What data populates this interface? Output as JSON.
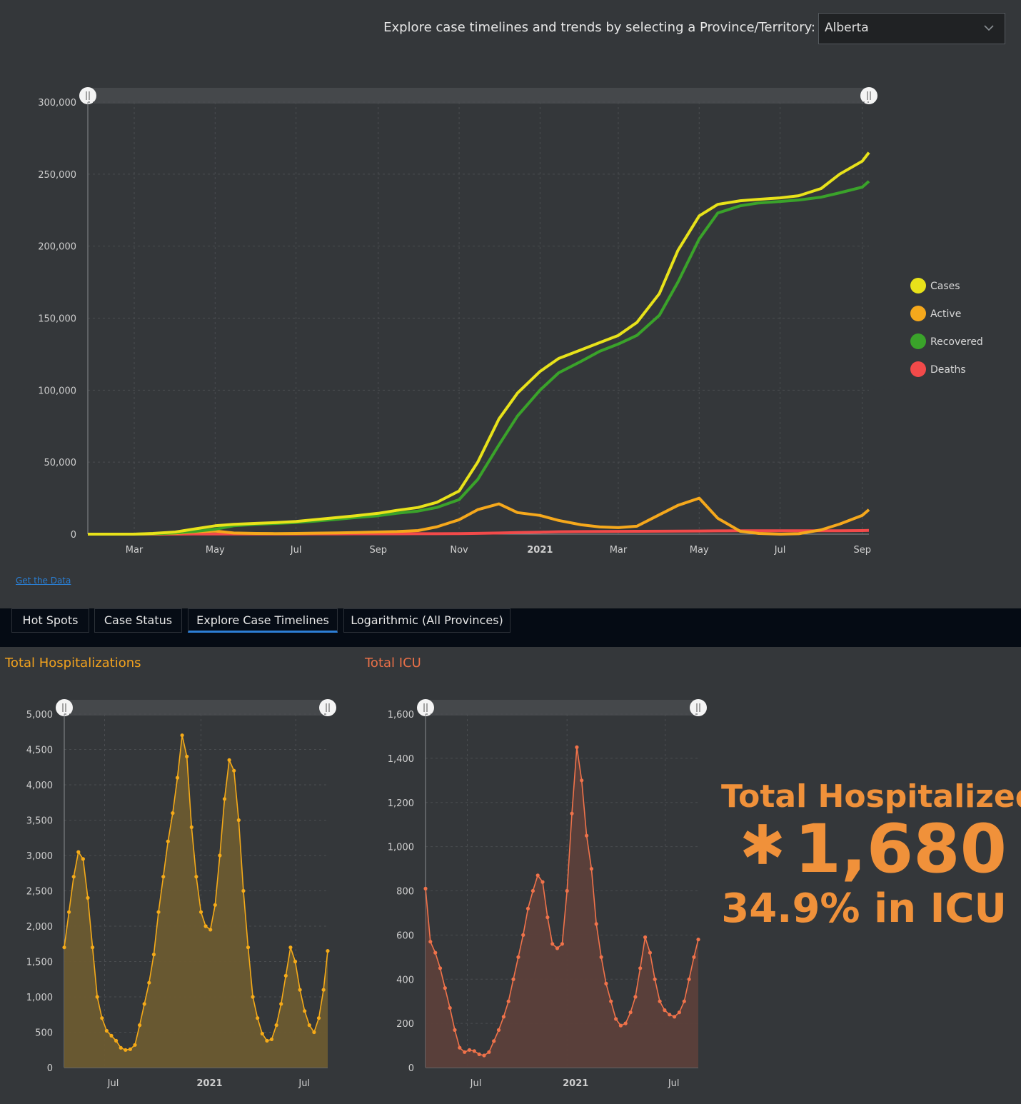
{
  "selector": {
    "label": "Explore case timelines and trends by selecting a Province/Territory:",
    "value": "Alberta",
    "caret_icon": "chevron-down-icon"
  },
  "get_data_link": "Get the Data",
  "tabs": [
    {
      "label": "Hot Spots",
      "active": false
    },
    {
      "label": "Case Status",
      "active": false
    },
    {
      "label": "Explore Case Timelines",
      "active": true
    },
    {
      "label": "Logarithmic (All Provinces)",
      "active": false
    }
  ],
  "kpi": {
    "title": "Total Hospitalized",
    "icon": "asterisk-icon",
    "value": "1,680",
    "sub": "34.9% in ICU",
    "color": "#f0913a"
  },
  "chart_data": [
    {
      "type": "line",
      "title": "",
      "x_tick_labels": [
        "Mar",
        "May",
        "Jul",
        "Sep",
        "Nov",
        "2021",
        "Mar",
        "May",
        "Jul",
        "Sep"
      ],
      "x_tick_bold": [
        false,
        false,
        false,
        false,
        false,
        true,
        false,
        false,
        false,
        false
      ],
      "x": [
        "2020-01-26",
        "2020-02-15",
        "2020-03-01",
        "2020-03-15",
        "2020-04-01",
        "2020-04-15",
        "2020-05-01",
        "2020-05-15",
        "2020-06-01",
        "2020-06-15",
        "2020-07-01",
        "2020-07-15",
        "2020-08-01",
        "2020-08-15",
        "2020-09-01",
        "2020-09-15",
        "2020-10-01",
        "2020-10-15",
        "2020-11-01",
        "2020-11-15",
        "2020-12-01",
        "2020-12-15",
        "2021-01-01",
        "2021-01-15",
        "2021-02-01",
        "2021-02-15",
        "2021-03-01",
        "2021-03-15",
        "2021-04-01",
        "2021-04-15",
        "2021-05-01",
        "2021-05-15",
        "2021-06-01",
        "2021-06-15",
        "2021-07-01",
        "2021-07-15",
        "2021-08-01",
        "2021-08-15",
        "2021-09-01",
        "2021-09-06"
      ],
      "series": [
        {
          "name": "Cases",
          "color": "#e8e21a",
          "values": [
            0,
            0,
            0,
            500,
            1500,
            3500,
            5800,
            6800,
            7500,
            8000,
            8800,
            10000,
            11500,
            12800,
            14500,
            16500,
            18500,
            22000,
            30000,
            50000,
            80000,
            98000,
            113000,
            122000,
            128000,
            133000,
            138000,
            147000,
            167000,
            197000,
            221000,
            229000,
            231500,
            232500,
            233500,
            235000,
            240000,
            250000,
            259000,
            265000
          ]
        },
        {
          "name": "Active",
          "color": "#f5a81c",
          "values": [
            0,
            0,
            0,
            200,
            600,
            1500,
            2200,
            800,
            500,
            400,
            500,
            700,
            900,
            1100,
            1500,
            1800,
            2500,
            5000,
            10000,
            17000,
            21000,
            15000,
            13000,
            9500,
            6500,
            5000,
            4500,
            5500,
            13500,
            20000,
            25000,
            11000,
            2000,
            500,
            0,
            300,
            3000,
            7000,
            13000,
            17000
          ]
        },
        {
          "name": "Recovered",
          "color": "#3aa32a",
          "values": [
            0,
            0,
            0,
            300,
            900,
            1900,
            3400,
            5800,
            6800,
            7400,
            8100,
            9000,
            10300,
            11500,
            12800,
            14500,
            16000,
            18500,
            24000,
            38000,
            62000,
            82000,
            100000,
            112000,
            120000,
            127000,
            132000,
            138000,
            152000,
            175000,
            205000,
            223000,
            228000,
            230000,
            231000,
            232000,
            234000,
            237000,
            241000,
            245000
          ]
        },
        {
          "name": "Deaths",
          "color": "#f24a4a",
          "values": [
            0,
            0,
            0,
            10,
            40,
            80,
            110,
            140,
            150,
            160,
            170,
            200,
            220,
            240,
            250,
            270,
            290,
            320,
            400,
            550,
            800,
            1100,
            1400,
            1700,
            1800,
            1900,
            1950,
            2000,
            2050,
            2100,
            2200,
            2300,
            2350,
            2320,
            2330,
            2340,
            2350,
            2400,
            2500,
            2600
          ]
        }
      ],
      "y_tick_labels": [
        "0",
        "50,000",
        "100,000",
        "150,000",
        "200,000",
        "250,000",
        "300,000"
      ],
      "ylim": [
        0,
        300000
      ],
      "grid": true,
      "legend": "right",
      "legend_entries": [
        "Cases",
        "Active",
        "Recovered",
        "Deaths"
      ]
    },
    {
      "type": "area",
      "title": "Total Hospitalizations",
      "title_color": "#f2a21e",
      "color": "#f5aa18",
      "fill": "#6b5a30",
      "x_tick_labels": [
        "Jul",
        "2021",
        "Jul"
      ],
      "x_tick_bold": [
        false,
        true,
        false
      ],
      "x": [
        "2020-04-15",
        "2020-04-24",
        "2020-05-03",
        "2020-05-12",
        "2020-05-21",
        "2020-05-30",
        "2020-06-08",
        "2020-06-17",
        "2020-06-26",
        "2020-07-05",
        "2020-07-14",
        "2020-07-23",
        "2020-08-01",
        "2020-08-10",
        "2020-08-19",
        "2020-08-28",
        "2020-09-06",
        "2020-09-15",
        "2020-09-24",
        "2020-10-03",
        "2020-10-12",
        "2020-10-21",
        "2020-10-30",
        "2020-11-08",
        "2020-11-17",
        "2020-11-26",
        "2020-12-05",
        "2020-12-14",
        "2020-12-23",
        "2021-01-01",
        "2021-01-10",
        "2021-01-19",
        "2021-01-28",
        "2021-02-06",
        "2021-02-15",
        "2021-02-24",
        "2021-03-05",
        "2021-03-14",
        "2021-03-23",
        "2021-04-01",
        "2021-04-10",
        "2021-04-19",
        "2021-04-28",
        "2021-05-07",
        "2021-05-16",
        "2021-05-25",
        "2021-06-03",
        "2021-06-12",
        "2021-06-21",
        "2021-06-30",
        "2021-07-09",
        "2021-07-18",
        "2021-07-27",
        "2021-08-05",
        "2021-08-14",
        "2021-08-23",
        "2021-08-31"
      ],
      "values": [
        1700,
        2200,
        2700,
        3050,
        2950,
        2400,
        1700,
        1000,
        700,
        520,
        450,
        380,
        280,
        250,
        260,
        320,
        600,
        900,
        1200,
        1600,
        2200,
        2700,
        3200,
        3600,
        4100,
        4700,
        4400,
        3400,
        2700,
        2200,
        2000,
        1950,
        2300,
        3000,
        3800,
        4350,
        4200,
        3500,
        2500,
        1700,
        1000,
        700,
        480,
        380,
        400,
        600,
        900,
        1300,
        1700,
        1500,
        1100,
        800,
        600,
        500,
        700,
        1100,
        1650
      ],
      "y_tick_labels": [
        "0",
        "500",
        "1,000",
        "1,500",
        "2,000",
        "2,500",
        "3,000",
        "3,500",
        "4,000",
        "4,500",
        "5,000"
      ],
      "ylim": [
        0,
        5000
      ],
      "grid": true
    },
    {
      "type": "area",
      "title": "Total ICU",
      "title_color": "#e87048",
      "color": "#f0724a",
      "fill": "#5c3f3a",
      "x_tick_labels": [
        "Jul",
        "2021",
        "Jul"
      ],
      "x_tick_bold": [
        false,
        true,
        false
      ],
      "x": [
        "2020-04-15",
        "2020-04-24",
        "2020-05-03",
        "2020-05-12",
        "2020-05-21",
        "2020-05-30",
        "2020-06-08",
        "2020-06-17",
        "2020-06-26",
        "2020-07-05",
        "2020-07-14",
        "2020-07-23",
        "2020-08-01",
        "2020-08-10",
        "2020-08-19",
        "2020-08-28",
        "2020-09-06",
        "2020-09-15",
        "2020-09-24",
        "2020-10-03",
        "2020-10-12",
        "2020-10-21",
        "2020-10-30",
        "2020-11-08",
        "2020-11-17",
        "2020-11-26",
        "2020-12-05",
        "2020-12-14",
        "2020-12-23",
        "2021-01-01",
        "2021-01-10",
        "2021-01-19",
        "2021-01-28",
        "2021-02-06",
        "2021-02-15",
        "2021-02-24",
        "2021-03-05",
        "2021-03-14",
        "2021-03-23",
        "2021-04-01",
        "2021-04-10",
        "2021-04-19",
        "2021-04-28",
        "2021-05-07",
        "2021-05-16",
        "2021-05-25",
        "2021-06-03",
        "2021-06-12",
        "2021-06-21",
        "2021-06-30",
        "2021-07-09",
        "2021-07-18",
        "2021-07-27",
        "2021-08-05",
        "2021-08-14",
        "2021-08-23",
        "2021-08-31"
      ],
      "values": [
        810,
        570,
        520,
        450,
        360,
        270,
        170,
        90,
        70,
        80,
        75,
        60,
        55,
        70,
        120,
        170,
        230,
        300,
        400,
        500,
        600,
        720,
        800,
        870,
        840,
        680,
        560,
        540,
        560,
        800,
        1150,
        1450,
        1300,
        1050,
        900,
        650,
        500,
        380,
        300,
        220,
        190,
        200,
        250,
        320,
        450,
        590,
        520,
        400,
        300,
        260,
        240,
        230,
        250,
        300,
        400,
        500,
        580
      ],
      "y_tick_labels": [
        "0",
        "200",
        "400",
        "600",
        "800",
        "1,000",
        "1,200",
        "1,400",
        "1,600"
      ],
      "ylim": [
        0,
        1600
      ],
      "grid": true
    }
  ]
}
